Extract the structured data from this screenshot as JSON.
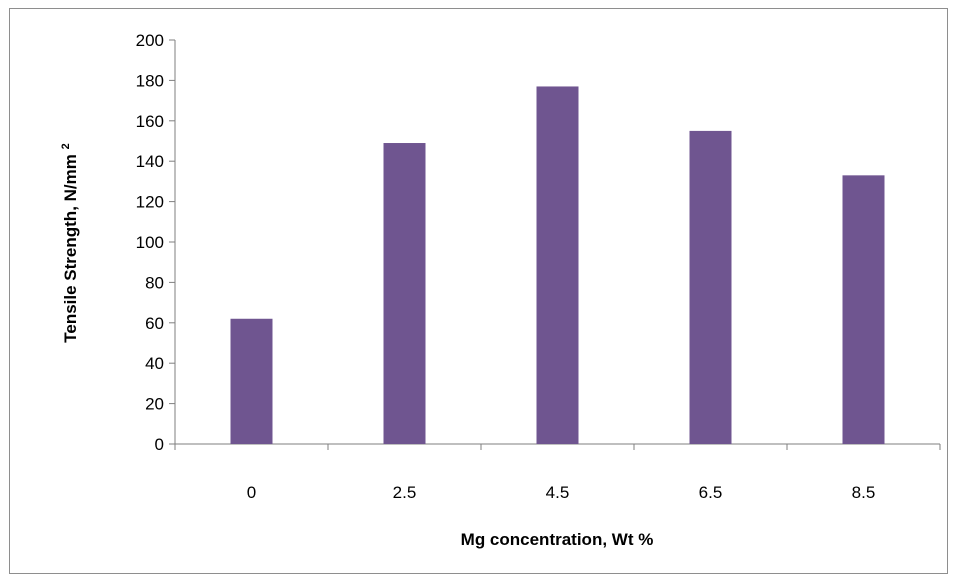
{
  "chart_data": {
    "type": "bar",
    "title": "",
    "categories": [
      "0",
      "2.5",
      "4.5",
      "6.5",
      "8.5"
    ],
    "values": [
      62,
      149,
      177,
      155,
      133
    ],
    "xlabel": "Mg concentration, Wt %",
    "ylabel": {
      "main": "Tensile Strength, N/mm",
      "superscript": "2"
    },
    "ylim": [
      0,
      200
    ],
    "yticks": [
      "0",
      "20",
      "40",
      "60",
      "80",
      "100",
      "120",
      "140",
      "160",
      "180",
      "200"
    ],
    "grid": false,
    "legend": "none",
    "bar_color": "#6f5590",
    "axis_color": "#7f7f7f"
  }
}
